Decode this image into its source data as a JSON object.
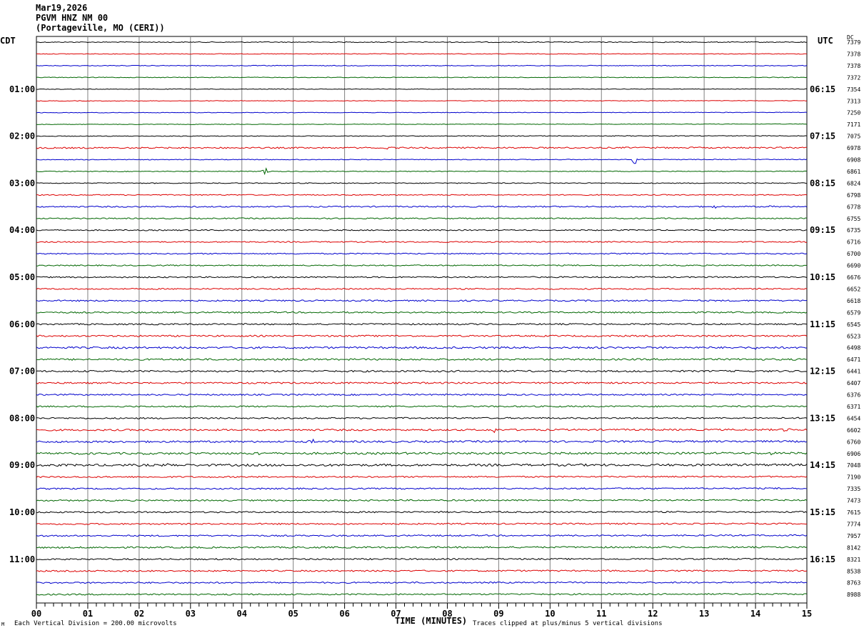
{
  "header": {
    "date": "Mar19,2026",
    "station": "PGVM HNZ NM 00",
    "location": "(Portageville, MO (CERI))"
  },
  "left_tz": "CDT",
  "right_tz": "UTC",
  "dc_label": "DC",
  "footer": {
    "scale": "Each Vertical Division =  200.00 microvolts",
    "clip": "Traces clipped at plus/minus 5 vertical divisions",
    "corner_mark": "M"
  },
  "colors": {
    "trace_cycle": [
      "#000000",
      "#dd0000",
      "#0000cc",
      "#006600"
    ],
    "grid": "#808080",
    "background": "#ffffff"
  },
  "chart_data": {
    "type": "line",
    "title": "PGVM HNZ NM 00",
    "xlabel": "TIME (MINUTES)",
    "ylabel": "",
    "xlim": [
      0,
      15
    ],
    "x_ticks": [
      "00",
      "01",
      "02",
      "03",
      "04",
      "05",
      "06",
      "07",
      "08",
      "09",
      "10",
      "11",
      "12",
      "13",
      "14",
      "15"
    ],
    "grid": true,
    "row_count": 48,
    "left_hour_labels": [
      {
        "row": 4,
        "label": "01:00"
      },
      {
        "row": 8,
        "label": "02:00"
      },
      {
        "row": 12,
        "label": "03:00"
      },
      {
        "row": 16,
        "label": "04:00"
      },
      {
        "row": 20,
        "label": "05:00"
      },
      {
        "row": 24,
        "label": "06:00"
      },
      {
        "row": 28,
        "label": "07:00"
      },
      {
        "row": 32,
        "label": "08:00"
      },
      {
        "row": 36,
        "label": "09:00"
      },
      {
        "row": 40,
        "label": "10:00"
      },
      {
        "row": 44,
        "label": "11:00"
      }
    ],
    "right_hour_labels": [
      {
        "row": 4,
        "label": "06:15"
      },
      {
        "row": 8,
        "label": "07:15"
      },
      {
        "row": 12,
        "label": "08:15"
      },
      {
        "row": 16,
        "label": "09:15"
      },
      {
        "row": 20,
        "label": "10:15"
      },
      {
        "row": 24,
        "label": "11:15"
      },
      {
        "row": 28,
        "label": "12:15"
      },
      {
        "row": 32,
        "label": "13:15"
      },
      {
        "row": 36,
        "label": "14:15"
      },
      {
        "row": 40,
        "label": "15:15"
      },
      {
        "row": 44,
        "label": "16:15"
      }
    ],
    "dc_offsets": [
      "7379",
      "7378",
      "7378",
      "7372",
      "7354",
      "7313",
      "7250",
      "7171",
      "7075",
      "6978",
      "6908",
      "6861",
      "6824",
      "6798",
      "6778",
      "6755",
      "6735",
      "6716",
      "6700",
      "6690",
      "6676",
      "6652",
      "6618",
      "6579",
      "6545",
      "6523",
      "6498",
      "6471",
      "6441",
      "6407",
      "6376",
      "6371",
      "6454",
      "6602",
      "6760",
      "6906",
      "7048",
      "7190",
      "7335",
      "7473",
      "7615",
      "7774",
      "7957",
      "8142",
      "8321",
      "8538",
      "8763",
      "8988"
    ],
    "series": [
      {
        "row": 0,
        "noise": 0.6,
        "drift": 0
      },
      {
        "row": 1,
        "noise": 0.5,
        "drift": 0
      },
      {
        "row": 2,
        "noise": 0.5,
        "drift": 0
      },
      {
        "row": 3,
        "noise": 0.5,
        "drift": 0
      },
      {
        "row": 4,
        "noise": 0.4,
        "drift": -4
      },
      {
        "row": 5,
        "noise": 0.4,
        "drift": -6
      },
      {
        "row": 6,
        "noise": 0.4,
        "drift": -8
      },
      {
        "row": 7,
        "noise": 0.4,
        "drift": -10
      },
      {
        "row": 8,
        "noise": 0.5,
        "drift": -10
      },
      {
        "row": 9,
        "noise": 1.0,
        "drift": -8,
        "bursts": [
          {
            "x": 6.8,
            "amp": 3
          }
        ]
      },
      {
        "row": 10,
        "noise": 0.5,
        "drift": -6,
        "bursts": [
          {
            "x": 11.65,
            "amp": 7
          }
        ]
      },
      {
        "row": 11,
        "noise": 0.5,
        "drift": -4,
        "bursts": [
          {
            "x": 4.45,
            "amp": 12
          }
        ]
      },
      {
        "row": 12,
        "noise": 0.6,
        "drift": -2
      },
      {
        "row": 13,
        "noise": 0.7,
        "drift": -2
      },
      {
        "row": 14,
        "noise": 0.9,
        "drift": -2,
        "bursts": [
          {
            "x": 13.2,
            "amp": 2.5
          },
          {
            "x": 14.3,
            "amp": 2.5
          }
        ]
      },
      {
        "row": 15,
        "noise": 0.8,
        "drift": -2
      },
      {
        "row": 16,
        "noise": 0.8,
        "drift": -2
      },
      {
        "row": 17,
        "noise": 0.8,
        "drift": -2
      },
      {
        "row": 18,
        "noise": 0.8,
        "drift": -2
      },
      {
        "row": 19,
        "noise": 0.8,
        "drift": -2
      },
      {
        "row": 20,
        "noise": 0.9,
        "drift": -3
      },
      {
        "row": 21,
        "noise": 0.9,
        "drift": -3
      },
      {
        "row": 22,
        "noise": 1.0,
        "drift": -3
      },
      {
        "row": 23,
        "noise": 1.0,
        "drift": -3
      },
      {
        "row": 24,
        "noise": 1.0,
        "drift": -3
      },
      {
        "row": 25,
        "noise": 1.1,
        "drift": -3
      },
      {
        "row": 26,
        "noise": 1.3,
        "drift": -3,
        "bursts": [
          {
            "x": 9.5,
            "amp": 3
          },
          {
            "x": 14.0,
            "amp": 3
          }
        ]
      },
      {
        "row": 27,
        "noise": 1.2,
        "drift": -3
      },
      {
        "row": 28,
        "noise": 1.2,
        "drift": -3
      },
      {
        "row": 29,
        "noise": 1.1,
        "drift": -3
      },
      {
        "row": 30,
        "noise": 1.0,
        "drift": -3
      },
      {
        "row": 31,
        "noise": 1.0,
        "drift": -3
      },
      {
        "row": 32,
        "noise": 1.0,
        "drift": -6
      },
      {
        "row": 33,
        "noise": 1.2,
        "drift": -8,
        "bursts": [
          {
            "x": 8.9,
            "amp": 7
          },
          {
            "x": 14.6,
            "amp": 6
          }
        ]
      },
      {
        "row": 34,
        "noise": 1.3,
        "drift": -10,
        "bursts": [
          {
            "x": 5.35,
            "amp": 6
          }
        ]
      },
      {
        "row": 35,
        "noise": 1.4,
        "drift": -10,
        "bursts": [
          {
            "x": 4.3,
            "amp": 3
          },
          {
            "x": 14.3,
            "amp": 3
          }
        ]
      },
      {
        "row": 36,
        "noise": 1.5,
        "drift": -10,
        "bursts": [
          {
            "x": 2.6,
            "amp": 3
          }
        ]
      },
      {
        "row": 37,
        "noise": 1.0,
        "drift": -10
      },
      {
        "row": 38,
        "noise": 1.0,
        "drift": -10
      },
      {
        "row": 39,
        "noise": 1.0,
        "drift": -10
      },
      {
        "row": 40,
        "noise": 1.0,
        "drift": -10
      },
      {
        "row": 41,
        "noise": 1.0,
        "drift": -10
      },
      {
        "row": 42,
        "noise": 1.0,
        "drift": -10
      },
      {
        "row": 43,
        "noise": 1.1,
        "drift": -10,
        "bursts": [
          {
            "x": 5.3,
            "amp": 3
          }
        ]
      },
      {
        "row": 44,
        "noise": 1.0,
        "drift": -10
      },
      {
        "row": 45,
        "noise": 1.0,
        "drift": -10
      },
      {
        "row": 46,
        "noise": 1.0,
        "drift": -10
      },
      {
        "row": 47,
        "noise": 1.0,
        "drift": -14
      }
    ]
  }
}
